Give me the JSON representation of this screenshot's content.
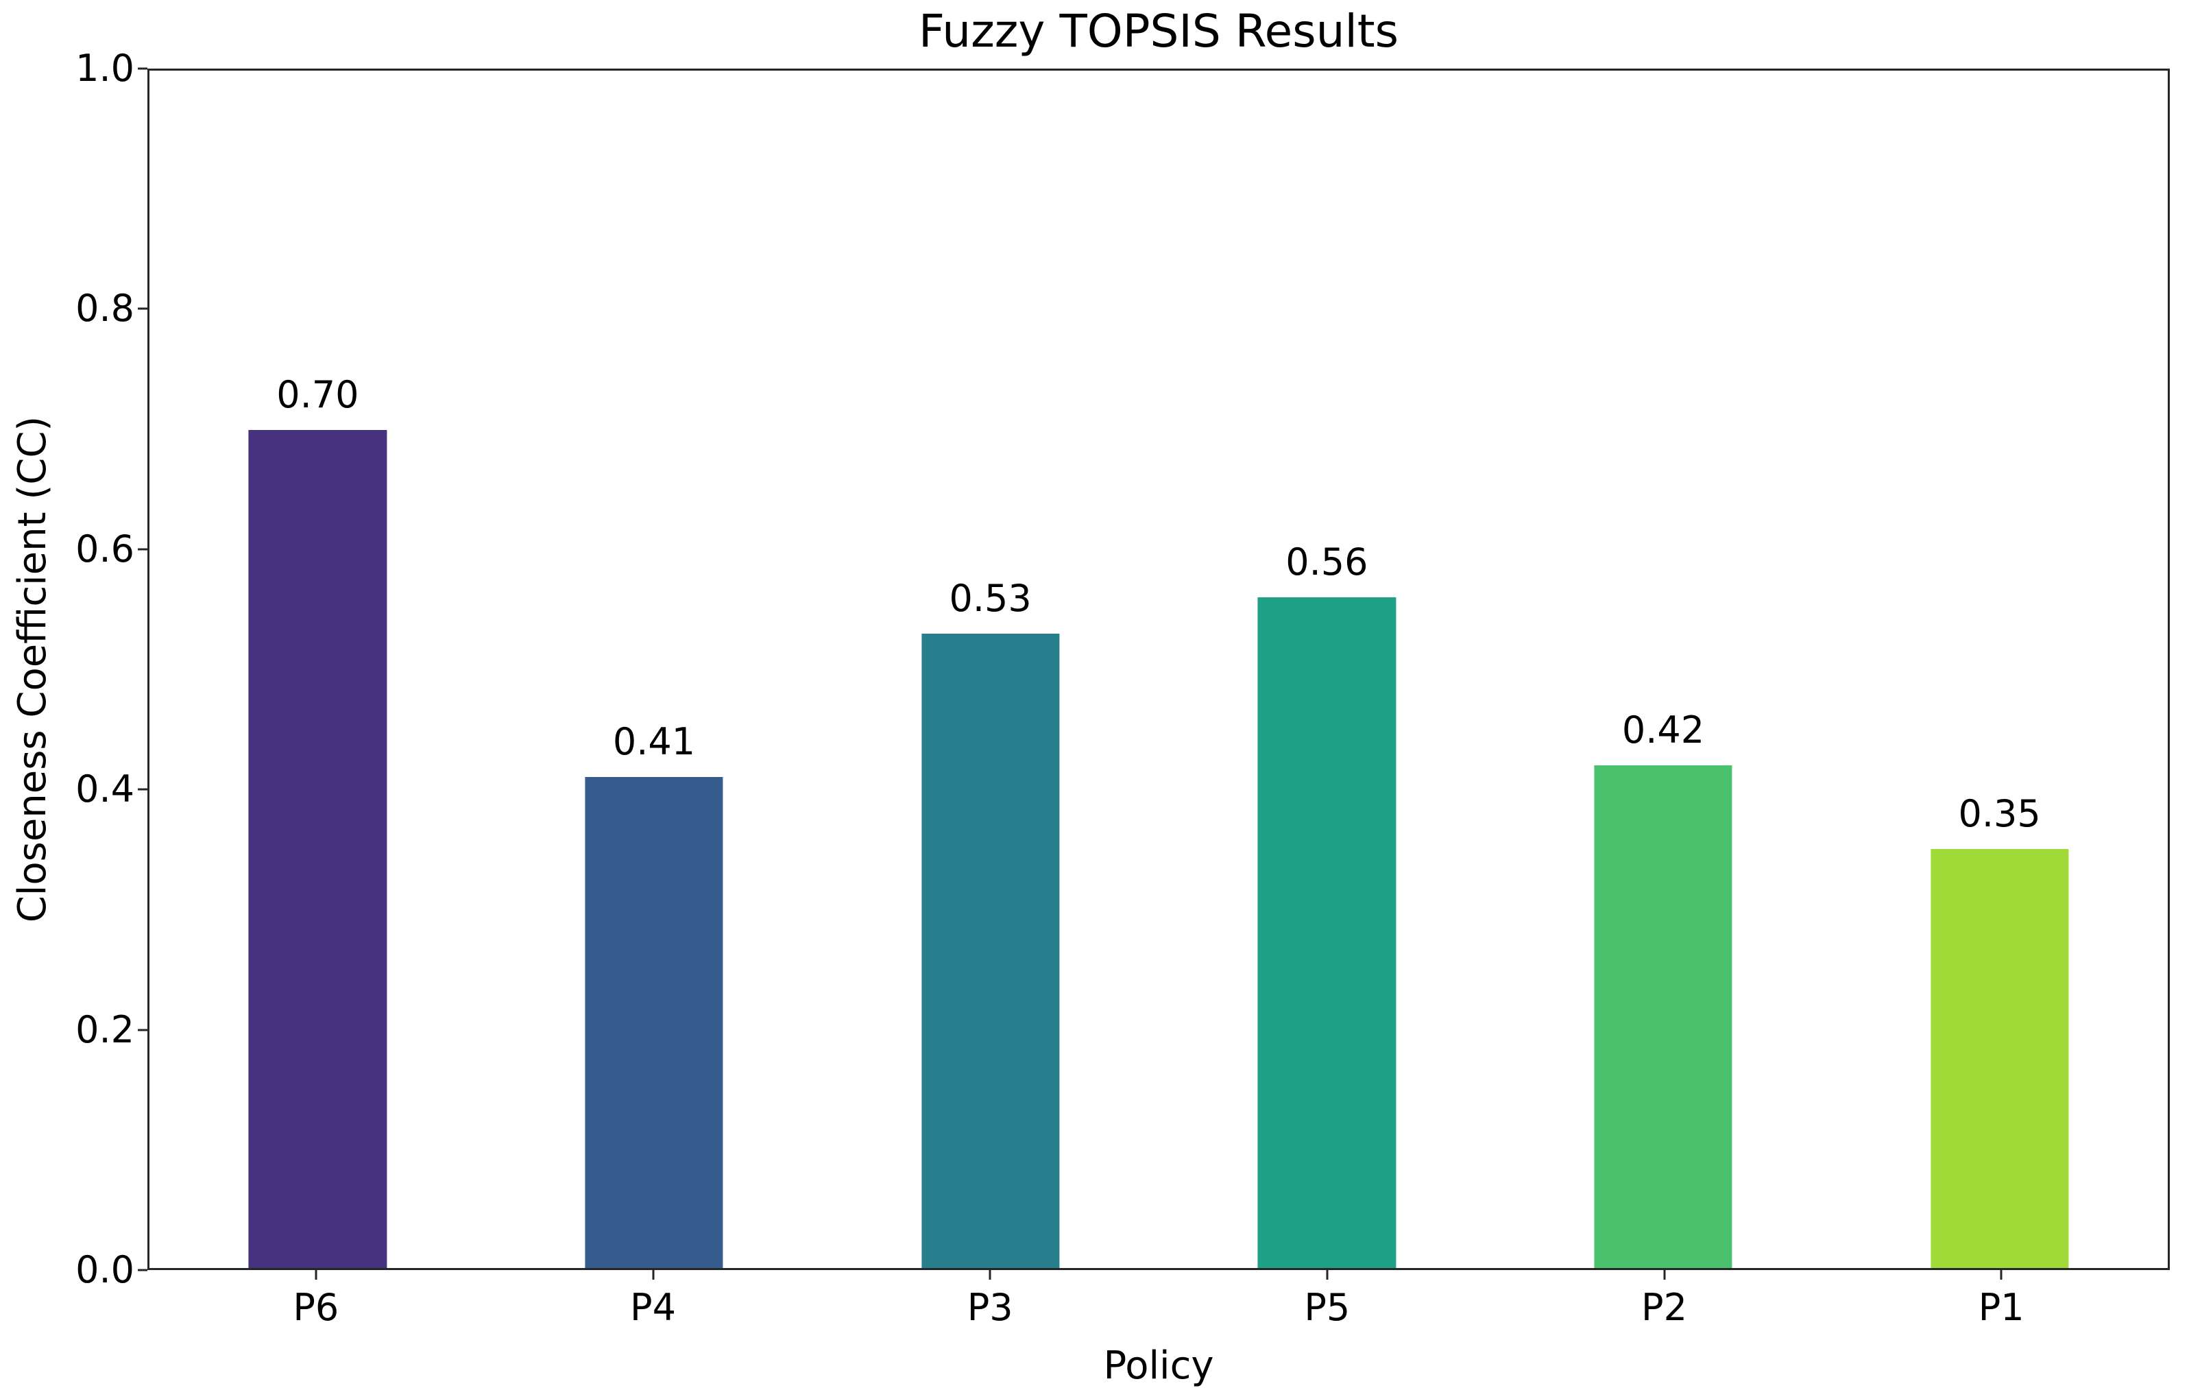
{
  "chart_data": {
    "type": "bar",
    "title": "Fuzzy TOPSIS Results",
    "xlabel": "Policy",
    "ylabel": "Closeness Coefficient (CC)",
    "categories": [
      "P6",
      "P4",
      "P3",
      "P5",
      "P2",
      "P1"
    ],
    "values": [
      0.7,
      0.41,
      0.53,
      0.56,
      0.42,
      0.35
    ],
    "bar_labels": [
      "0.70",
      "0.41",
      "0.53",
      "0.56",
      "0.42",
      "0.35"
    ],
    "bar_colors": [
      "#46327e",
      "#365c8d",
      "#277f8e",
      "#1fa187",
      "#4ac16d",
      "#a0da39"
    ],
    "ylim": [
      0.0,
      1.0
    ],
    "yticks": [
      0.0,
      0.2,
      0.4,
      0.6,
      0.8,
      1.0
    ],
    "ytick_labels": [
      "0.0",
      "0.2",
      "0.4",
      "0.6",
      "0.8",
      "1.0"
    ],
    "grid": false,
    "legend": null,
    "bar_width_fraction": 0.41,
    "colors": {
      "spine": "#262626",
      "text": "#000000",
      "background": "#ffffff"
    }
  }
}
